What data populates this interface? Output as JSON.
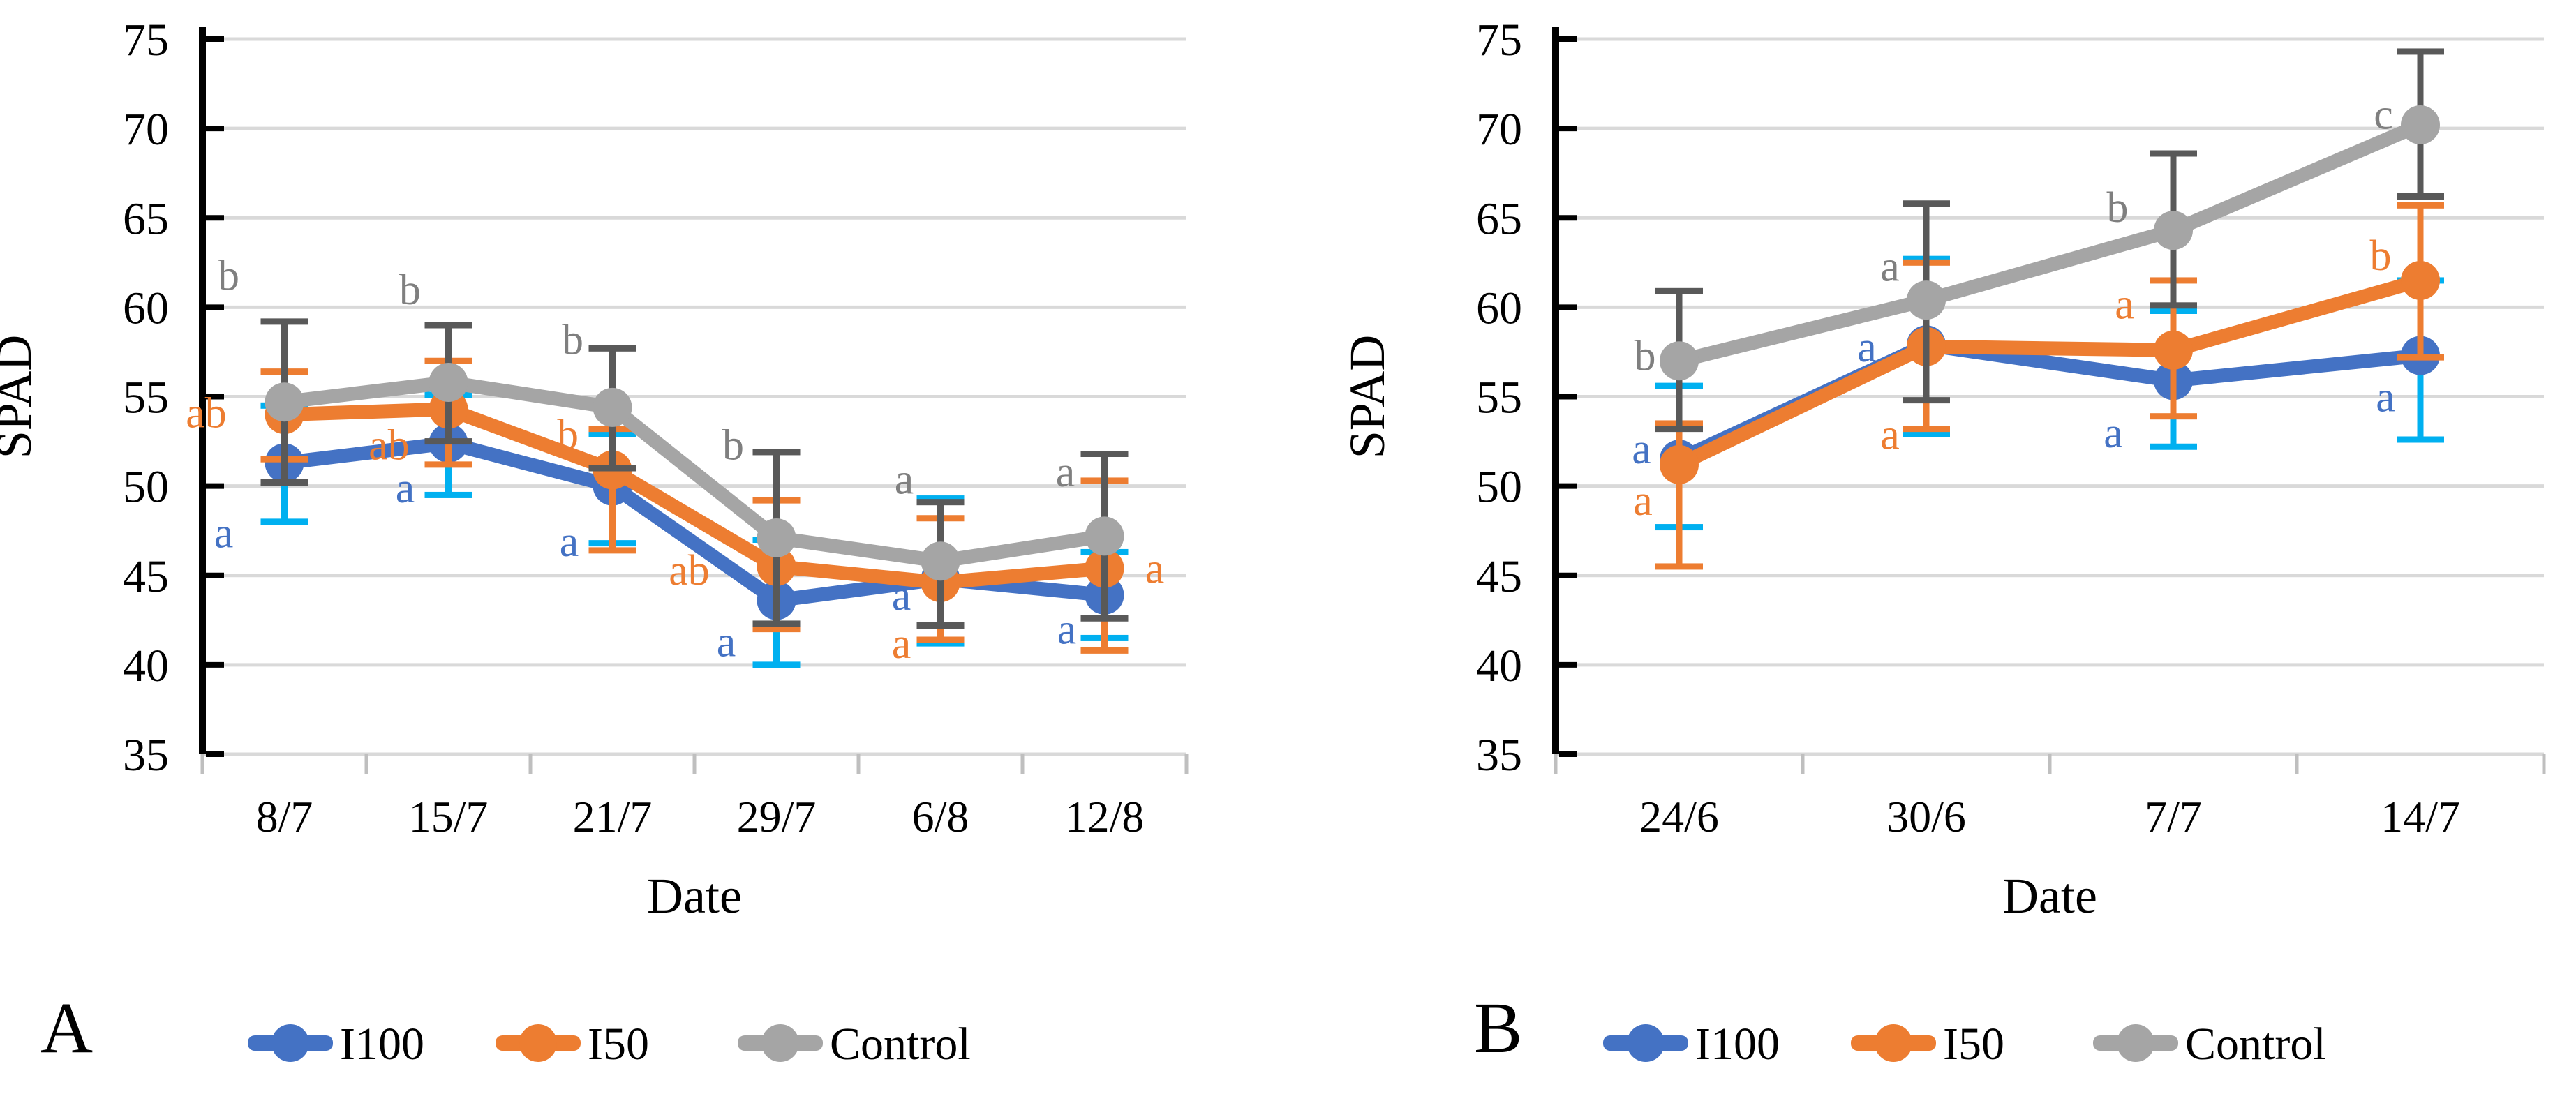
{
  "figure": {
    "description": "Two-panel line chart of SPAD readings over dates for three irrigation treatments with significance letters and error bars",
    "colors": {
      "I100": "#4472C4",
      "I50": "#ED7D31",
      "Control": "#A5A5A5",
      "I100_err": "#00B0F0",
      "I50_err": "#ED7D31",
      "Control_err": "#595959",
      "gridline": "#D9D9D9",
      "axis": "#000000",
      "x_tick": "#BFBFBF",
      "letter_gray": "#7F7F7F"
    }
  },
  "chart_data": [
    {
      "type": "line",
      "panel_label": "A",
      "xlabel": "Date",
      "ylabel": "SPAD",
      "ylim": [
        35,
        75
      ],
      "yticks": [
        75,
        70,
        65,
        60,
        55,
        50,
        45,
        40,
        35
      ],
      "grid": true,
      "legend_position": "bottom",
      "categories": [
        "8/7",
        "15/7",
        "21/7",
        "29/7",
        "6/8",
        "12/8"
      ],
      "series": [
        {
          "name": "I100",
          "color": "#4472C4",
          "err_color": "#00B0F0",
          "values": [
            51.3,
            52.4,
            50.0,
            43.6,
            44.8,
            43.9
          ],
          "err_up": [
            3.2,
            2.7,
            2.9,
            3.4,
            4.5,
            2.4
          ],
          "err_down": [
            3.3,
            2.9,
            3.2,
            3.6,
            3.6,
            2.4
          ],
          "letters": [
            {
              "t": "a",
              "dx": -87,
              "v": 47.4
            },
            {
              "t": "a",
              "dx": -62,
              "v": 49.9
            },
            {
              "t": "a",
              "dx": -62,
              "v": 46.9
            },
            {
              "t": "a",
              "dx": -72,
              "v": 41.3
            },
            {
              "t": "a",
              "dx": -56,
              "v": 43.9
            },
            {
              "t": "a",
              "dx": -54,
              "v": 42.0
            }
          ]
        },
        {
          "name": "I50",
          "color": "#ED7D31",
          "err_color": "#ED7D31",
          "values": [
            54.0,
            54.3,
            50.9,
            45.5,
            44.6,
            45.4
          ],
          "err_up": [
            2.4,
            2.7,
            2.3,
            3.7,
            3.6,
            4.9
          ],
          "err_down": [
            2.5,
            3.1,
            4.5,
            3.5,
            3.2,
            4.6
          ],
          "letters": [
            {
              "t": "ab",
              "dx": -112,
              "v": 54.1
            },
            {
              "t": "ab",
              "dx": -85,
              "v": 52.3
            },
            {
              "t": "b",
              "dx": -64,
              "v": 52.9
            },
            {
              "t": "ab",
              "dx": -125,
              "v": 45.3
            },
            {
              "t": "a",
              "dx": -56,
              "v": 41.2
            },
            {
              "t": "a",
              "dx": 72,
              "v": 45.4
            }
          ]
        },
        {
          "name": "Control",
          "color": "#A5A5A5",
          "err_color": "#595959",
          "letter_color": "#7F7F7F",
          "values": [
            54.7,
            55.8,
            54.4,
            47.1,
            45.8,
            47.2
          ],
          "err_up": [
            4.5,
            3.2,
            3.3,
            4.8,
            3.3,
            4.6
          ],
          "err_down": [
            4.5,
            3.3,
            3.4,
            4.8,
            3.6,
            4.6
          ],
          "letters": [
            {
              "t": "b",
              "dx": -80,
              "v": 61.8
            },
            {
              "t": "b",
              "dx": -55,
              "v": 61.0
            },
            {
              "t": "b",
              "dx": -57,
              "v": 58.2
            },
            {
              "t": "b",
              "dx": -62,
              "v": 52.3
            },
            {
              "t": "a",
              "dx": -52,
              "v": 50.4
            },
            {
              "t": "a",
              "dx": -56,
              "v": 50.8
            }
          ]
        }
      ],
      "legend": [
        "I100",
        "I50",
        "Control"
      ]
    },
    {
      "type": "line",
      "panel_label": "B",
      "xlabel": "Date",
      "ylabel": "SPAD",
      "ylim": [
        35,
        75
      ],
      "yticks": [
        75,
        70,
        65,
        60,
        55,
        50,
        45,
        40,
        35
      ],
      "grid": true,
      "legend_position": "bottom",
      "categories": [
        "24/6",
        "30/6",
        "7/7",
        "14/7"
      ],
      "series": [
        {
          "name": "I100",
          "color": "#4472C4",
          "err_color": "#00B0F0",
          "values": [
            51.5,
            57.9,
            55.9,
            57.3
          ],
          "err_up": [
            4.1,
            4.8,
            3.9,
            4.2
          ],
          "err_down": [
            3.8,
            5.0,
            3.7,
            4.7
          ],
          "letters": [
            {
              "t": "a",
              "dx": -54,
              "v": 52.1
            },
            {
              "t": "a",
              "dx": -85,
              "v": 57.8
            },
            {
              "t": "a",
              "dx": -86,
              "v": 53.0
            },
            {
              "t": "a",
              "dx": -50,
              "v": 55.0
            }
          ]
        },
        {
          "name": "I50",
          "color": "#ED7D31",
          "err_color": "#ED7D31",
          "values": [
            51.2,
            57.8,
            57.6,
            61.5
          ],
          "err_up": [
            2.3,
            4.7,
            3.9,
            4.2
          ],
          "err_down": [
            5.7,
            4.6,
            3.7,
            4.3
          ],
          "letters": [
            {
              "t": "a",
              "dx": -52,
              "v": 49.2
            },
            {
              "t": "a",
              "dx": -52,
              "v": 52.9
            },
            {
              "t": "a",
              "dx": -70,
              "v": 60.2
            },
            {
              "t": "b",
              "dx": -57,
              "v": 62.9
            }
          ]
        },
        {
          "name": "Control",
          "color": "#A5A5A5",
          "err_color": "#595959",
          "letter_color": "#7F7F7F",
          "values": [
            57.0,
            60.4,
            64.3,
            70.2
          ],
          "err_up": [
            3.9,
            5.4,
            4.3,
            4.1
          ],
          "err_down": [
            3.8,
            5.6,
            4.2,
            4.0
          ],
          "letters": [
            {
              "t": "b",
              "dx": -49,
              "v": 57.3
            },
            {
              "t": "a",
              "dx": -52,
              "v": 62.3
            },
            {
              "t": "b",
              "dx": -80,
              "v": 65.6
            },
            {
              "t": "c",
              "dx": -53,
              "v": 70.8
            }
          ]
        }
      ],
      "legend": [
        "I100",
        "I50",
        "Control"
      ]
    }
  ]
}
